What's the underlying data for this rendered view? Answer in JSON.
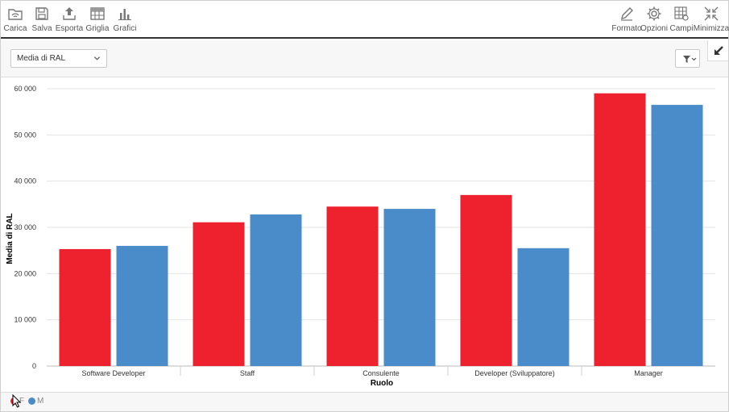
{
  "toolbar": {
    "left": [
      {
        "name": "carica-button",
        "icon": "folder-open-icon",
        "label": "Carica"
      },
      {
        "name": "salva-button",
        "icon": "floppy-disk-icon",
        "label": "Salva"
      },
      {
        "name": "esporta-button",
        "icon": "upload-icon",
        "label": "Esporta"
      },
      {
        "name": "griglia-button",
        "icon": "grid-icon",
        "label": "Griglia"
      },
      {
        "name": "grafici-button",
        "icon": "bar-chart-icon",
        "label": "Grafici"
      }
    ],
    "right": [
      {
        "name": "formato-button",
        "icon": "pencil-icon",
        "label": "Formato"
      },
      {
        "name": "opzioni-button",
        "icon": "gear-icon",
        "label": "Opzioni"
      },
      {
        "name": "campi-button",
        "icon": "fields-grid-icon",
        "label": "Campi"
      },
      {
        "name": "minimizza-button",
        "icon": "minimize-arrows-icon",
        "label": "Minimizza"
      }
    ]
  },
  "controls": {
    "measure_select": "Media di RAL"
  },
  "legend": [
    {
      "label": "F",
      "color": "#ee212f"
    },
    {
      "label": "M",
      "color": "#4a8cc9"
    }
  ],
  "chart_data": {
    "type": "bar",
    "xlabel": "Ruolo",
    "ylabel": "Media di RAL",
    "ylim": [
      0,
      60000
    ],
    "yticks": [
      0,
      10000,
      20000,
      30000,
      40000,
      50000,
      60000
    ],
    "ytick_labels": [
      "0",
      "10 000",
      "20 000",
      "30 000",
      "40 000",
      "50 000",
      "60 000"
    ],
    "categories": [
      "Software Developer",
      "Staff",
      "Consulente",
      "Developer (Sviluppatore)",
      "Manager"
    ],
    "series": [
      {
        "name": "F",
        "color": "#ee212f",
        "values": [
          25300,
          31100,
          34500,
          37000,
          59000
        ]
      },
      {
        "name": "M",
        "color": "#4a8cc9",
        "values": [
          26000,
          32800,
          34000,
          25500,
          56500
        ]
      }
    ],
    "grid": true,
    "legend_position": "bottom-left"
  }
}
